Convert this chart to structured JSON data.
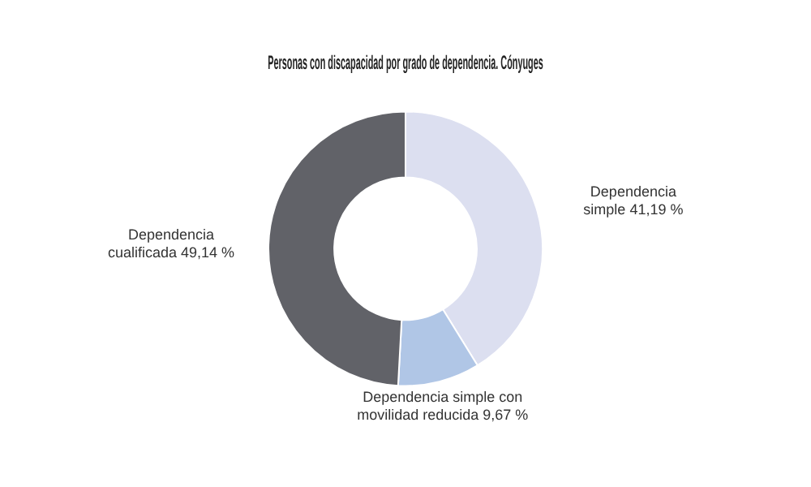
{
  "chart_data": {
    "type": "donut",
    "title": "Personas con discapacidad por grado de dependencia. Cónyuges",
    "categories": [
      "Dependencia simple",
      "Dependencia simple con movilidad reducida",
      "Dependencia cualificada"
    ],
    "values": [
      41.19,
      9.67,
      49.14
    ],
    "value_labels": [
      "41,19 %",
      "9,67 %",
      "49,14 %"
    ],
    "colors": [
      "#dcdff0",
      "#b0c6e6",
      "#616268"
    ],
    "legend": false
  }
}
